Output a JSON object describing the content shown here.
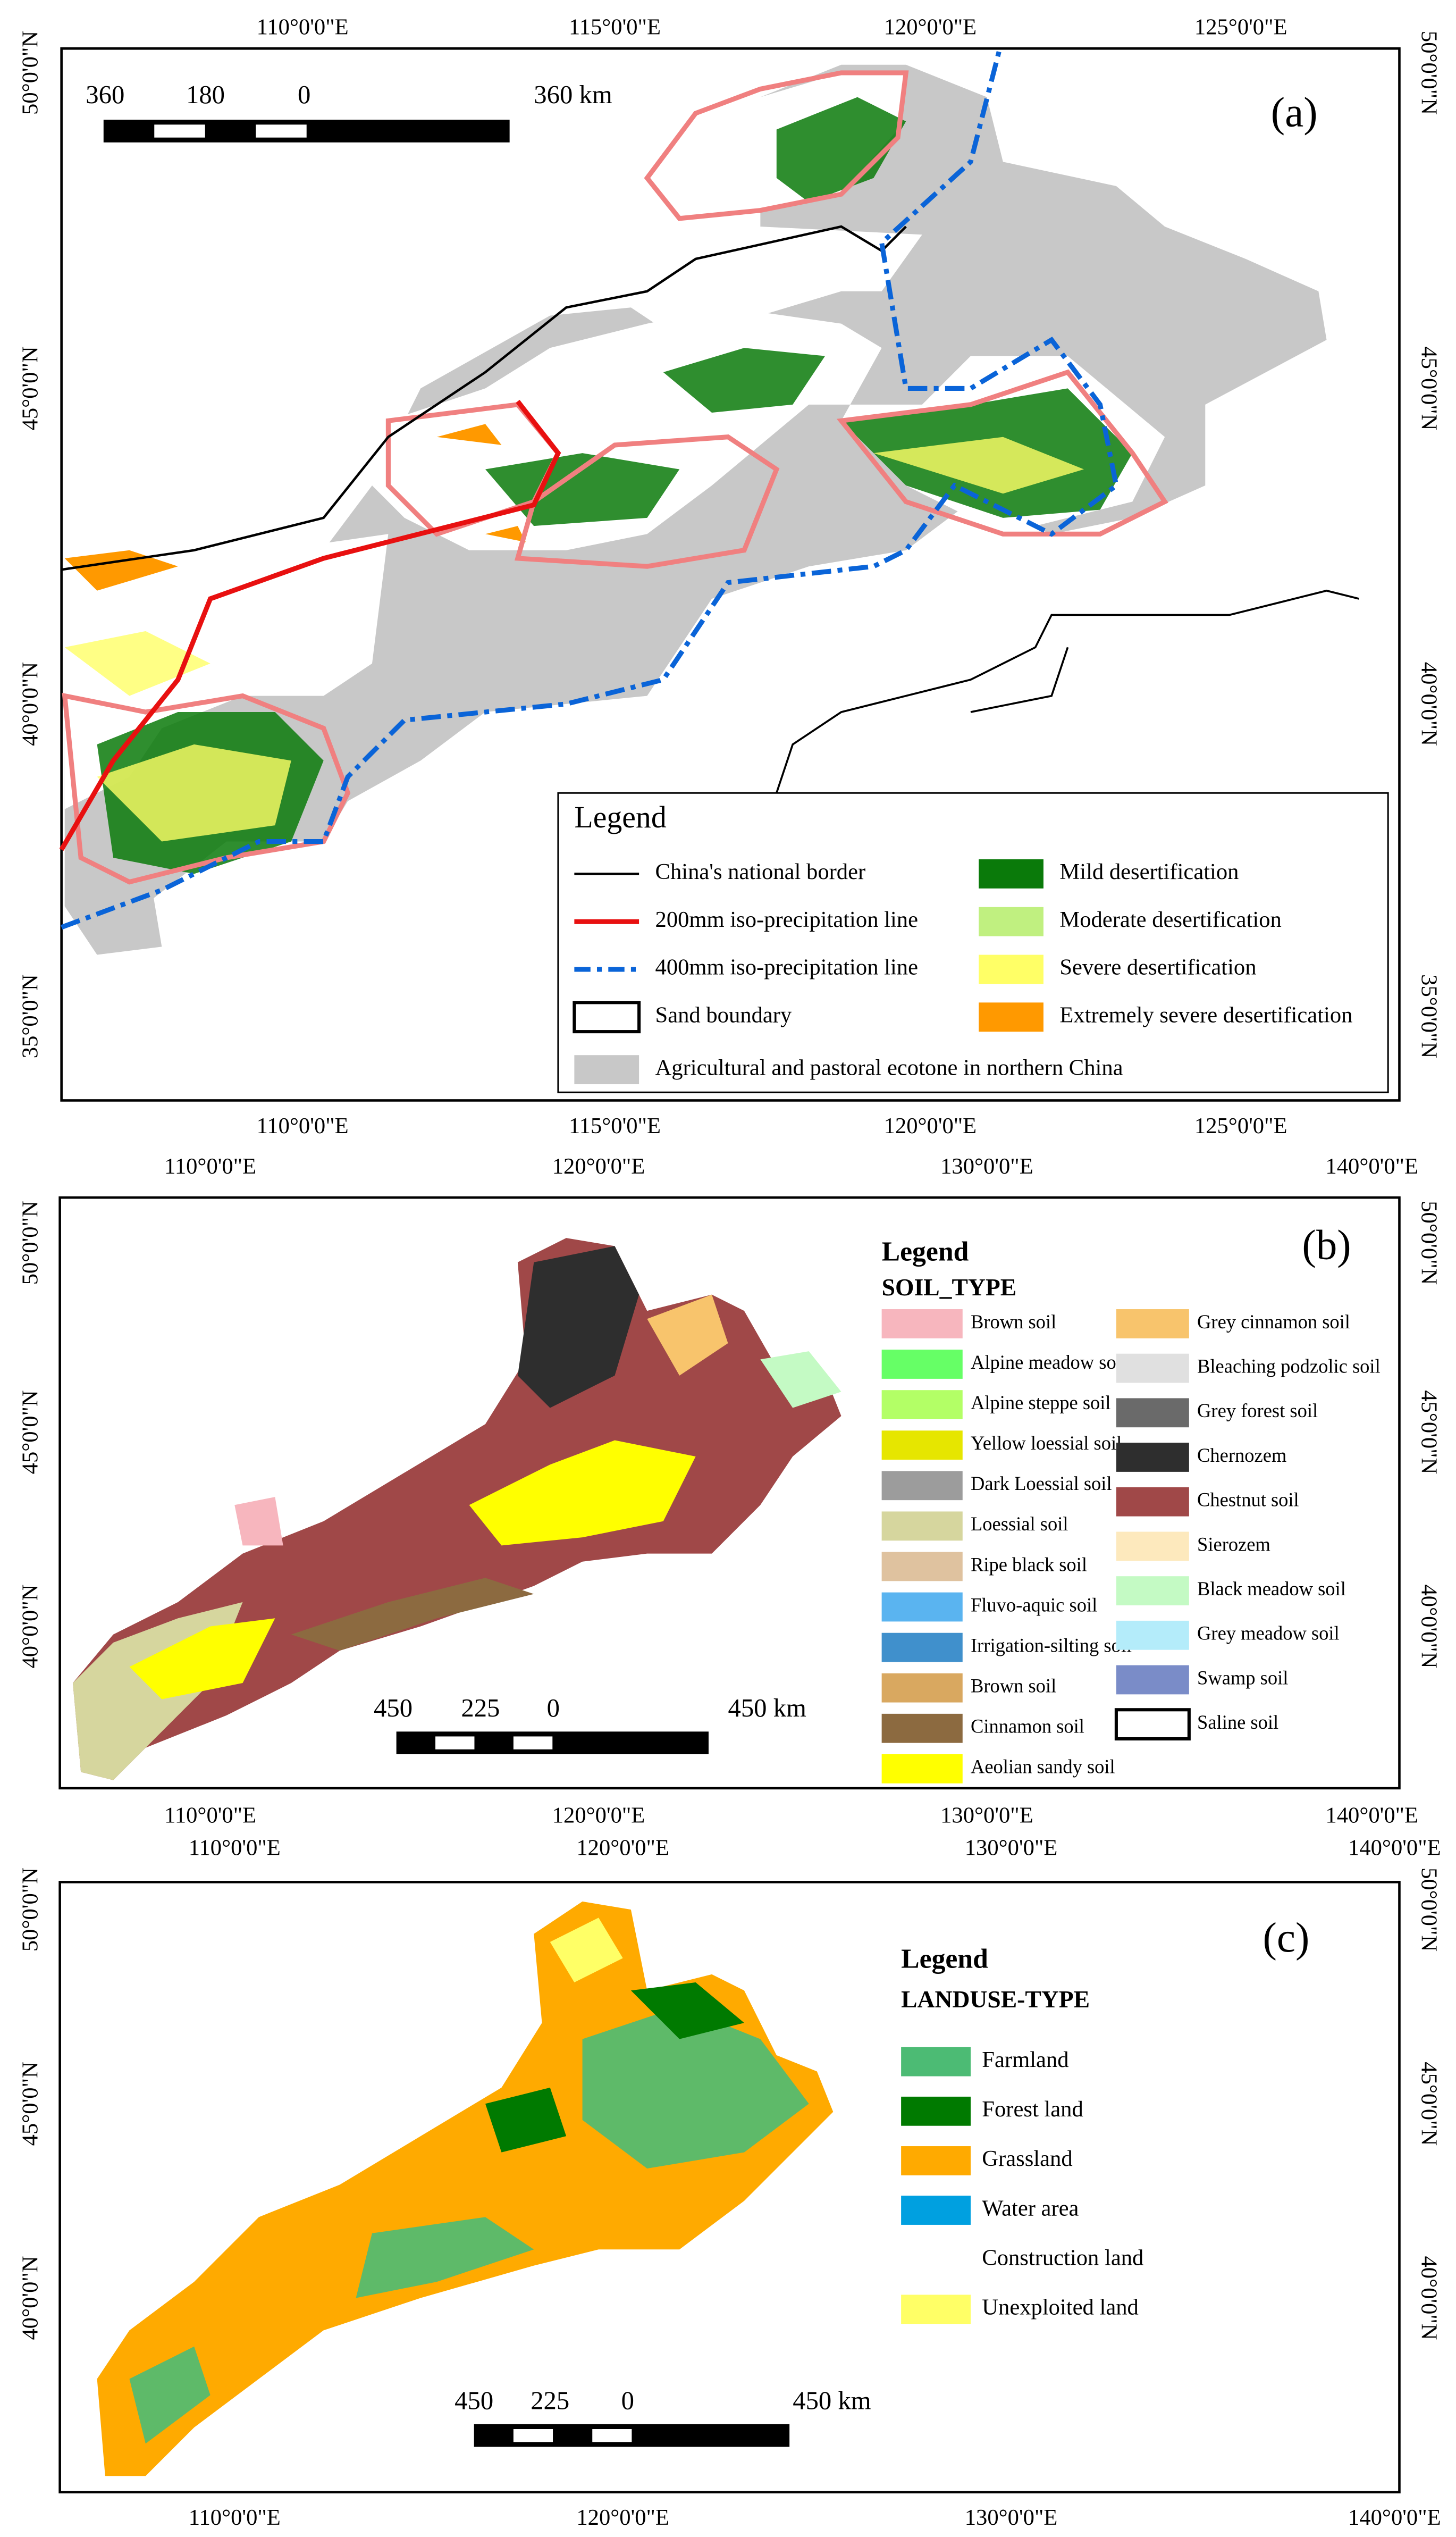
{
  "panels": [
    {
      "label": "(a)",
      "top_lon_labels": [
        "110°0'0\"E",
        "115°0'0\"E",
        "120°0'0\"E",
        "125°0'0\"E"
      ],
      "bottom_lon_labels": [
        "110°0'0\"E",
        "115°0'0\"E",
        "120°0'0\"E",
        "125°0'0\"E"
      ],
      "left_lat_labels": [
        "50°0'0\"N",
        "45°0'0\"N",
        "40°0'0\"N",
        "35°0'0\"N"
      ],
      "right_lat_labels": [
        "50°0'0\"N",
        "45°0'0\"N",
        "40°0'0\"N",
        "35°0'0\"N"
      ],
      "scale_labels": [
        "360",
        "180",
        "0",
        "360 km"
      ],
      "legend": {
        "title": "Legend",
        "columns": [
          [
            {
              "label": "China's national border",
              "color": "#000000",
              "symbol": "line"
            },
            {
              "label": "200mm iso-precipitation line",
              "color": "#e81010",
              "symbol": "line"
            },
            {
              "label": "400mm iso-precipitation line",
              "color": "#0a64d8",
              "symbol": "dashdot"
            },
            {
              "label": "Sand boundary",
              "color": "#ffffff",
              "symbol": "outline"
            },
            {
              "label": "Agricultural and pastoral ecotone in northern China",
              "color": "#c8c8c8",
              "symbol": "box"
            }
          ],
          [
            {
              "label": "Mild desertification",
              "color": "#0a7a0a",
              "symbol": "box"
            },
            {
              "label": "Moderate desertification",
              "color": "#c0f080",
              "symbol": "box"
            },
            {
              "label": "Severe desertification",
              "color": "#ffff66",
              "symbol": "box"
            },
            {
              "label": "Extremely severe desertification",
              "color": "#ff9900",
              "symbol": "box"
            }
          ]
        ]
      }
    },
    {
      "label": "(b)",
      "top_lon_labels": [
        "110°0'0\"E",
        "120°0'0\"E",
        "130°0'0\"E",
        "140°0'0\"E"
      ],
      "bottom_lon_labels": [
        "110°0'0\"E",
        "120°0'0\"E",
        "130°0'0\"E",
        "140°0'0\"E"
      ],
      "left_lat_labels": [
        "50°0'0\"N",
        "45°0'0\"N",
        "40°0'0\"N"
      ],
      "right_lat_labels": [
        "50°0'0\"N",
        "45°0'0\"N",
        "40°0'0\"N"
      ],
      "scale_labels": [
        "450",
        "225",
        "0",
        "450 km"
      ],
      "legend": {
        "title": "Legend",
        "subtitle": "SOIL_TYPE",
        "columns": [
          [
            {
              "label": "Brown soil",
              "color": "#f7b6be",
              "symbol": "box"
            },
            {
              "label": "Alpine meadow soil",
              "color": "#66ff66",
              "symbol": "box"
            },
            {
              "label": "Alpine steppe soil",
              "color": "#b3ff66",
              "symbol": "box"
            },
            {
              "label": "Yellow loessial soil",
              "color": "#e6e600",
              "symbol": "box"
            },
            {
              "label": "Dark Loessial soil",
              "color": "#9c9c9c",
              "symbol": "box"
            },
            {
              "label": "Loessial soil",
              "color": "#d6d69e",
              "symbol": "box"
            },
            {
              "label": "Ripe black soil",
              "color": "#dfc29f",
              "symbol": "box"
            },
            {
              "label": "Fluvo-aquic soil",
              "color": "#5ab4f0",
              "symbol": "box"
            },
            {
              "label": "Irrigation-silting soil",
              "color": "#4090cc",
              "symbol": "box"
            },
            {
              "label": "Brown soil",
              "color": "#d9a860",
              "symbol": "box"
            },
            {
              "label": "Cinnamon soil",
              "color": "#8c6a40",
              "symbol": "box"
            },
            {
              "label": "Aeolian sandy soil",
              "color": "#ffff00",
              "symbol": "box"
            }
          ],
          [
            {
              "label": "Grey cinnamon soil",
              "color": "#f8c46c",
              "symbol": "box"
            },
            {
              "label": "Bleaching podzolic soil",
              "color": "#e0e0e0",
              "symbol": "box"
            },
            {
              "label": "Grey forest soil",
              "color": "#6a6a6a",
              "symbol": "box"
            },
            {
              "label": "Chernozem",
              "color": "#2e2e2e",
              "symbol": "box"
            },
            {
              "label": "Chestnut soil",
              "color": "#a04848",
              "symbol": "box"
            },
            {
              "label": "Sierozem",
              "color": "#fde9bd",
              "symbol": "box"
            },
            {
              "label": "Black meadow soil",
              "color": "#c4fac4",
              "symbol": "box"
            },
            {
              "label": "Grey meadow soil",
              "color": "#b4ecfa",
              "symbol": "box"
            },
            {
              "label": "Swamp soil",
              "color": "#7a8cc8",
              "symbol": "box"
            },
            {
              "label": "Saline soil",
              "color": "#ffffff",
              "symbol": "outline"
            }
          ]
        ]
      }
    },
    {
      "label": "(c)",
      "top_lon_labels": [
        "110°0'0\"E",
        "120°0'0\"E",
        "130°0'0\"E",
        "140°0'0\"E"
      ],
      "bottom_lon_labels": [
        "110°0'0\"E",
        "120°0'0\"E",
        "130°0'0\"E",
        "140°0'0\"E"
      ],
      "left_lat_labels": [
        "50°0'0\"N",
        "45°0'0\"N",
        "40°0'0\"N"
      ],
      "right_lat_labels": [
        "50°0'0\"N",
        "45°0'0\"N",
        "40°0'0\"N"
      ],
      "scale_labels": [
        "450",
        "225",
        "0",
        "450 km"
      ],
      "legend": {
        "title": "Legend",
        "subtitle": "LANDUSE-TYPE",
        "columns": [
          [
            {
              "label": "Farmland",
              "color": "#4cbb74",
              "symbol": "box"
            },
            {
              "label": "Forest land",
              "color": "#007a00",
              "symbol": "box"
            },
            {
              "label": "Grassland",
              "color": "#ffaa00",
              "symbol": "box"
            },
            {
              "label": "Water area",
              "color": "#00a0e0",
              "symbol": "box"
            },
            {
              "label": "Construction land",
              "color": "#ffffff",
              "symbol": "box"
            },
            {
              "label": "Unexploited land",
              "color": "#ffff66",
              "symbol": "box"
            }
          ]
        ]
      }
    }
  ]
}
